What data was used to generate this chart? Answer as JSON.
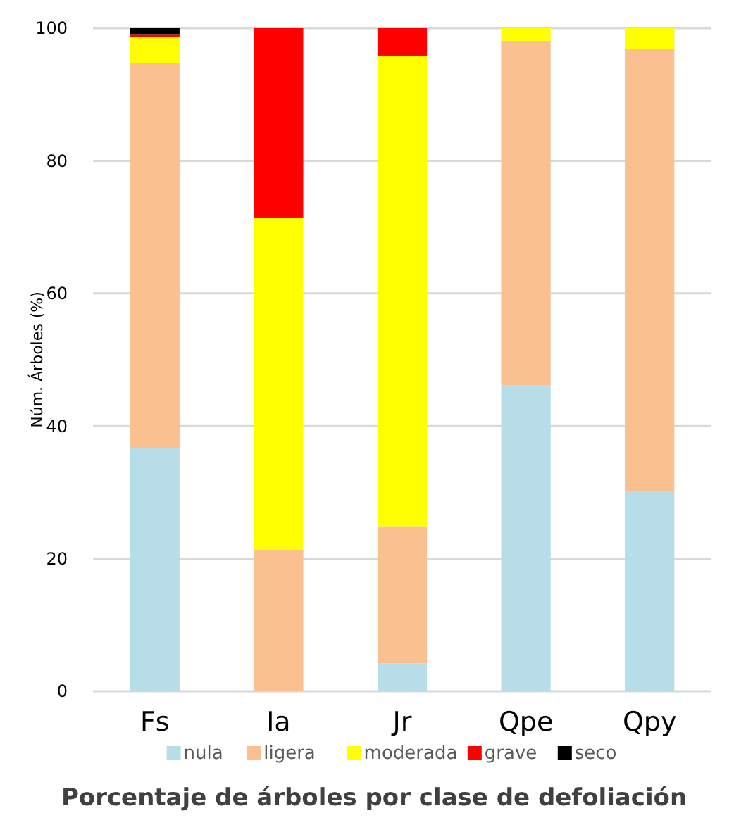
{
  "chart_data": {
    "type": "bar",
    "title": "Porcentaje de árboles por clase de defoliación",
    "ylabel": "Núm. Árboles (%)",
    "categories": [
      "Fs",
      "Ia",
      "Jr",
      "Qpe",
      "Qpy"
    ],
    "stacked": true,
    "ylim": [
      0,
      100
    ],
    "yticks": [
      0,
      20,
      40,
      60,
      80,
      100
    ],
    "grid": "y",
    "legend": "bottom",
    "series": [
      {
        "name": "nula",
        "color": "#b7dde8",
        "values": [
          36.7,
          0,
          4.2,
          46.1,
          30.2
        ]
      },
      {
        "name": "ligera",
        "color": "#fac090",
        "values": [
          58.1,
          21.4,
          20.7,
          52,
          66.7
        ]
      },
      {
        "name": "moderada",
        "color": "#ffff00",
        "values": [
          3.9,
          50,
          70.9,
          1.9,
          3.1
        ]
      },
      {
        "name": "grave",
        "color": "#ff0000",
        "values": [
          0.3,
          28.6,
          4.2,
          0,
          0
        ]
      },
      {
        "name": "seco",
        "color": "#000000",
        "values": [
          1,
          0,
          0,
          0,
          0
        ]
      }
    ]
  }
}
